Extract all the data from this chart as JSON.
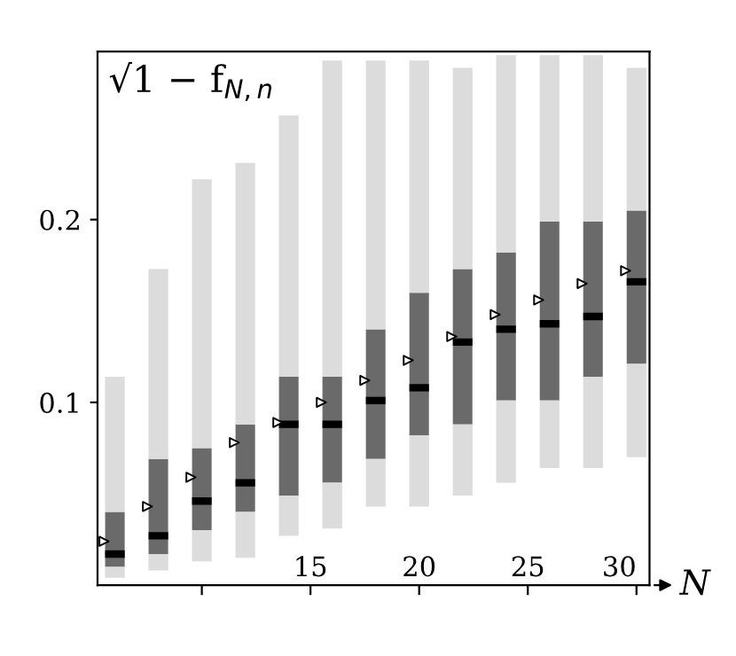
{
  "chart_data": {
    "type": "box",
    "ylabel": "√1 − f$_{N,n}$",
    "xlabel": "N",
    "x": [
      6,
      8,
      10,
      12,
      14,
      16,
      18,
      20,
      22,
      24,
      26,
      28,
      30
    ],
    "boxes": [
      {
        "low": 0.004,
        "q1": 0.01,
        "median": 0.017,
        "q3": 0.04,
        "high": 0.114
      },
      {
        "low": 0.008,
        "q1": 0.017,
        "median": 0.027,
        "q3": 0.069,
        "high": 0.173
      },
      {
        "low": 0.013,
        "q1": 0.03,
        "median": 0.046,
        "q3": 0.075,
        "high": 0.222
      },
      {
        "low": 0.015,
        "q1": 0.04,
        "median": 0.056,
        "q3": 0.088,
        "high": 0.231
      },
      {
        "low": 0.027,
        "q1": 0.049,
        "median": 0.088,
        "q3": 0.114,
        "high": 0.257
      },
      {
        "low": 0.031,
        "q1": 0.056,
        "median": 0.088,
        "q3": 0.114,
        "high": 0.287
      },
      {
        "low": 0.043,
        "q1": 0.069,
        "median": 0.101,
        "q3": 0.14,
        "high": 0.287
      },
      {
        "low": 0.043,
        "q1": 0.082,
        "median": 0.108,
        "q3": 0.16,
        "high": 0.287
      },
      {
        "low": 0.049,
        "q1": 0.088,
        "median": 0.133,
        "q3": 0.173,
        "high": 0.283
      },
      {
        "low": 0.056,
        "q1": 0.101,
        "median": 0.14,
        "q3": 0.182,
        "high": 0.29
      },
      {
        "low": 0.064,
        "q1": 0.101,
        "median": 0.143,
        "q3": 0.199,
        "high": 0.29
      },
      {
        "low": 0.064,
        "q1": 0.114,
        "median": 0.147,
        "q3": 0.199,
        "high": 0.29
      },
      {
        "low": 0.07,
        "q1": 0.121,
        "median": 0.166,
        "q3": 0.205,
        "high": 0.283
      }
    ],
    "series": [
      {
        "type": "scatter",
        "marker": "triangle",
        "color": "#ffffff",
        "x": [
          5.5,
          7.5,
          9.5,
          11.5,
          13.5,
          15.5,
          17.5,
          19.5,
          21.5,
          23.5,
          25.5,
          27.5,
          29.5
        ],
        "values": [
          0.024,
          0.043,
          0.059,
          0.078,
          0.089,
          0.1,
          0.112,
          0.123,
          0.136,
          0.148,
          0.156,
          0.165,
          0.172
        ]
      }
    ],
    "xlim": [
      5.2,
      30.6
    ],
    "ylim": [
      0,
      0.292
    ],
    "xticks": [
      {
        "value": 10,
        "label": null
      },
      15,
      20,
      25,
      30
    ],
    "yticks": [
      0.1,
      0.2
    ],
    "grid": false,
    "legend": false
  }
}
